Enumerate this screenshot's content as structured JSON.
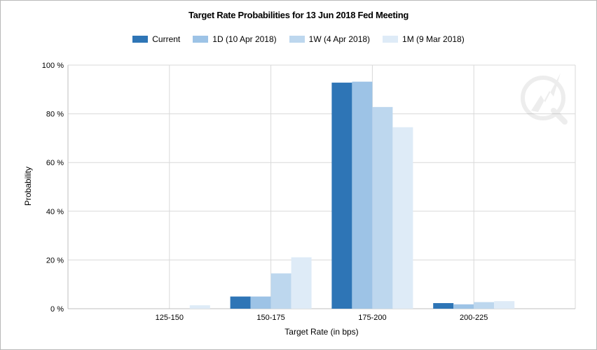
{
  "chart_data": {
    "type": "bar",
    "title": "Target Rate Probabilities for 13 Jun 2018 Fed Meeting",
    "xlabel": "Target Rate (in bps)",
    "ylabel": "Probability",
    "categories": [
      "125-150",
      "150-175",
      "175-200",
      "200-225"
    ],
    "ylim": [
      0,
      100
    ],
    "yticks": [
      0,
      20,
      40,
      60,
      80,
      100
    ],
    "ytick_labels": [
      "0 %",
      "20 %",
      "40 %",
      "60 %",
      "80 %",
      "100 %"
    ],
    "grid": true,
    "legend_position": "top-center",
    "series": [
      {
        "name": "Current",
        "color": "#2e75b6",
        "values": [
          0,
          5.0,
          92.8,
          2.3
        ]
      },
      {
        "name": "1D (10 Apr 2018)",
        "color": "#9dc3e6",
        "values": [
          0,
          5.0,
          93.2,
          1.8
        ]
      },
      {
        "name": "1W (4 Apr 2018)",
        "color": "#bdd7ee",
        "values": [
          0,
          14.5,
          82.8,
          2.7
        ]
      },
      {
        "name": "1M (9 Mar 2018)",
        "color": "#deebf7",
        "values": [
          1.4,
          21.1,
          74.5,
          3.1
        ]
      }
    ]
  }
}
